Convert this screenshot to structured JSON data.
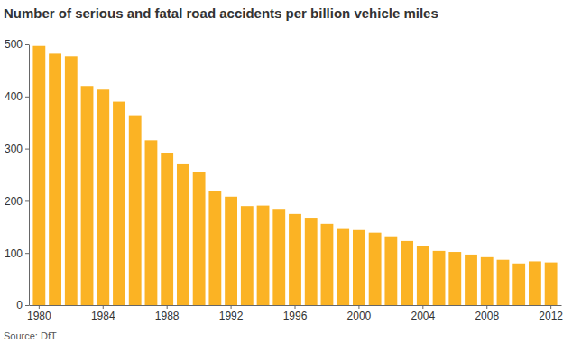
{
  "chart_data": {
    "type": "bar",
    "title": "Number of serious and fatal road accidents per billion vehicle miles",
    "source": "Source: DfT",
    "categories": [
      "1980",
      null,
      null,
      null,
      "1984",
      null,
      null,
      null,
      "1988",
      null,
      null,
      null,
      "1992",
      null,
      null,
      null,
      "1996",
      null,
      null,
      null,
      "2000",
      null,
      null,
      null,
      "2004",
      null,
      null,
      null,
      "2008",
      null,
      null,
      null,
      "2012"
    ],
    "values": [
      497,
      482,
      477,
      420,
      413,
      390,
      364,
      316,
      292,
      270,
      256,
      218,
      208,
      190,
      191,
      183,
      175,
      166,
      156,
      146,
      144,
      139,
      132,
      123,
      113,
      104,
      102,
      97,
      92,
      87,
      80,
      84,
      82
    ],
    "color": "#fbb324",
    "ylim": [
      0,
      500
    ],
    "yticks": [
      0,
      100,
      200,
      300,
      400,
      500
    ],
    "grid": false
  }
}
